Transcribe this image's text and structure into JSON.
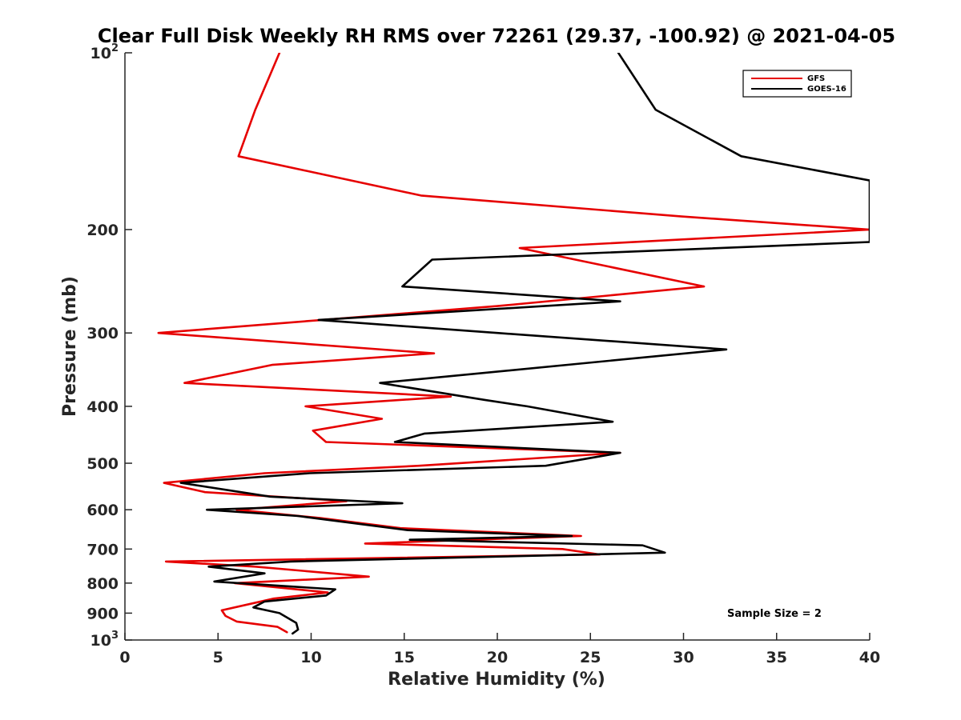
{
  "chart_data": {
    "type": "line",
    "title": "Clear Full Disk Weekly RH RMS over 72261 (29.37, -100.92) @ 2021-04-05",
    "xlabel": "Relative Humidity (%)",
    "ylabel": "Pressure (mb)",
    "xlim": [
      0,
      40
    ],
    "ylim": [
      100,
      1000
    ],
    "y_scale": "log",
    "y_reversed": true,
    "grid": false,
    "legend_position": "top-right",
    "x_ticks": [
      0,
      5,
      10,
      15,
      20,
      25,
      30,
      35,
      40
    ],
    "y_ticks": [
      {
        "value": 100,
        "base": "10",
        "exp": "2"
      },
      {
        "value": 200,
        "label": "200"
      },
      {
        "value": 300,
        "label": "300"
      },
      {
        "value": 400,
        "label": "400"
      },
      {
        "value": 500,
        "label": "500"
      },
      {
        "value": 600,
        "label": "600"
      },
      {
        "value": 700,
        "label": "700"
      },
      {
        "value": 800,
        "label": "800"
      },
      {
        "value": 900,
        "label": "900"
      },
      {
        "value": 1000,
        "base": "10",
        "exp": "3"
      }
    ],
    "annotation": "Sample Size = 2",
    "series": [
      {
        "name": "GFS",
        "color": "#e60000",
        "points": [
          [
            8.3,
            100
          ],
          [
            7.0,
            125
          ],
          [
            6.1,
            150
          ],
          [
            15.9,
            175
          ],
          [
            29.9,
            190
          ],
          [
            40.0,
            200
          ],
          [
            21.2,
            215
          ],
          [
            31.1,
            250
          ],
          [
            20.0,
            270
          ],
          [
            10.6,
            285
          ],
          [
            1.8,
            300
          ],
          [
            16.6,
            325
          ],
          [
            7.9,
            340
          ],
          [
            3.2,
            365
          ],
          [
            17.5,
            385
          ],
          [
            9.7,
            400
          ],
          [
            13.8,
            420
          ],
          [
            10.1,
            440
          ],
          [
            10.8,
            460
          ],
          [
            26.6,
            480
          ],
          [
            15.8,
            505
          ],
          [
            7.5,
            520
          ],
          [
            2.1,
            540
          ],
          [
            4.3,
            560
          ],
          [
            11.9,
            580
          ],
          [
            6.0,
            600
          ],
          [
            10.5,
            620
          ],
          [
            14.8,
            645
          ],
          [
            24.5,
            665
          ],
          [
            12.9,
            685
          ],
          [
            23.5,
            700
          ],
          [
            25.5,
            715
          ],
          [
            2.2,
            735
          ],
          [
            7.0,
            750
          ],
          [
            13.1,
            780
          ],
          [
            5.9,
            800
          ],
          [
            10.9,
            830
          ],
          [
            8.0,
            850
          ],
          [
            5.2,
            890
          ],
          [
            5.4,
            910
          ],
          [
            6.0,
            930
          ],
          [
            8.2,
            950
          ],
          [
            8.7,
            970
          ]
        ]
      },
      {
        "name": "GOES-16",
        "color": "#000000",
        "points": [
          [
            26.5,
            100
          ],
          [
            28.5,
            125
          ],
          [
            33.1,
            150
          ],
          [
            40.0,
            165
          ],
          [
            40.0,
            210
          ],
          [
            16.5,
            225
          ],
          [
            14.9,
            250
          ],
          [
            26.6,
            265
          ],
          [
            10.4,
            285
          ],
          [
            20.0,
            300
          ],
          [
            32.3,
            320
          ],
          [
            13.7,
            365
          ],
          [
            19.3,
            390
          ],
          [
            21.6,
            400
          ],
          [
            26.2,
            425
          ],
          [
            16.1,
            445
          ],
          [
            14.5,
            460
          ],
          [
            26.6,
            480
          ],
          [
            22.6,
            505
          ],
          [
            9.9,
            520
          ],
          [
            3.0,
            540
          ],
          [
            7.8,
            570
          ],
          [
            14.9,
            585
          ],
          [
            4.4,
            600
          ],
          [
            9.3,
            615
          ],
          [
            15.2,
            650
          ],
          [
            24.0,
            665
          ],
          [
            15.3,
            675
          ],
          [
            27.8,
            690
          ],
          [
            29.0,
            710
          ],
          [
            8.9,
            735
          ],
          [
            4.5,
            750
          ],
          [
            7.5,
            770
          ],
          [
            4.8,
            795
          ],
          [
            11.3,
            820
          ],
          [
            10.8,
            840
          ],
          [
            7.5,
            860
          ],
          [
            6.9,
            880
          ],
          [
            8.3,
            900
          ],
          [
            9.2,
            935
          ],
          [
            9.3,
            960
          ],
          [
            9.0,
            975
          ]
        ]
      }
    ]
  }
}
